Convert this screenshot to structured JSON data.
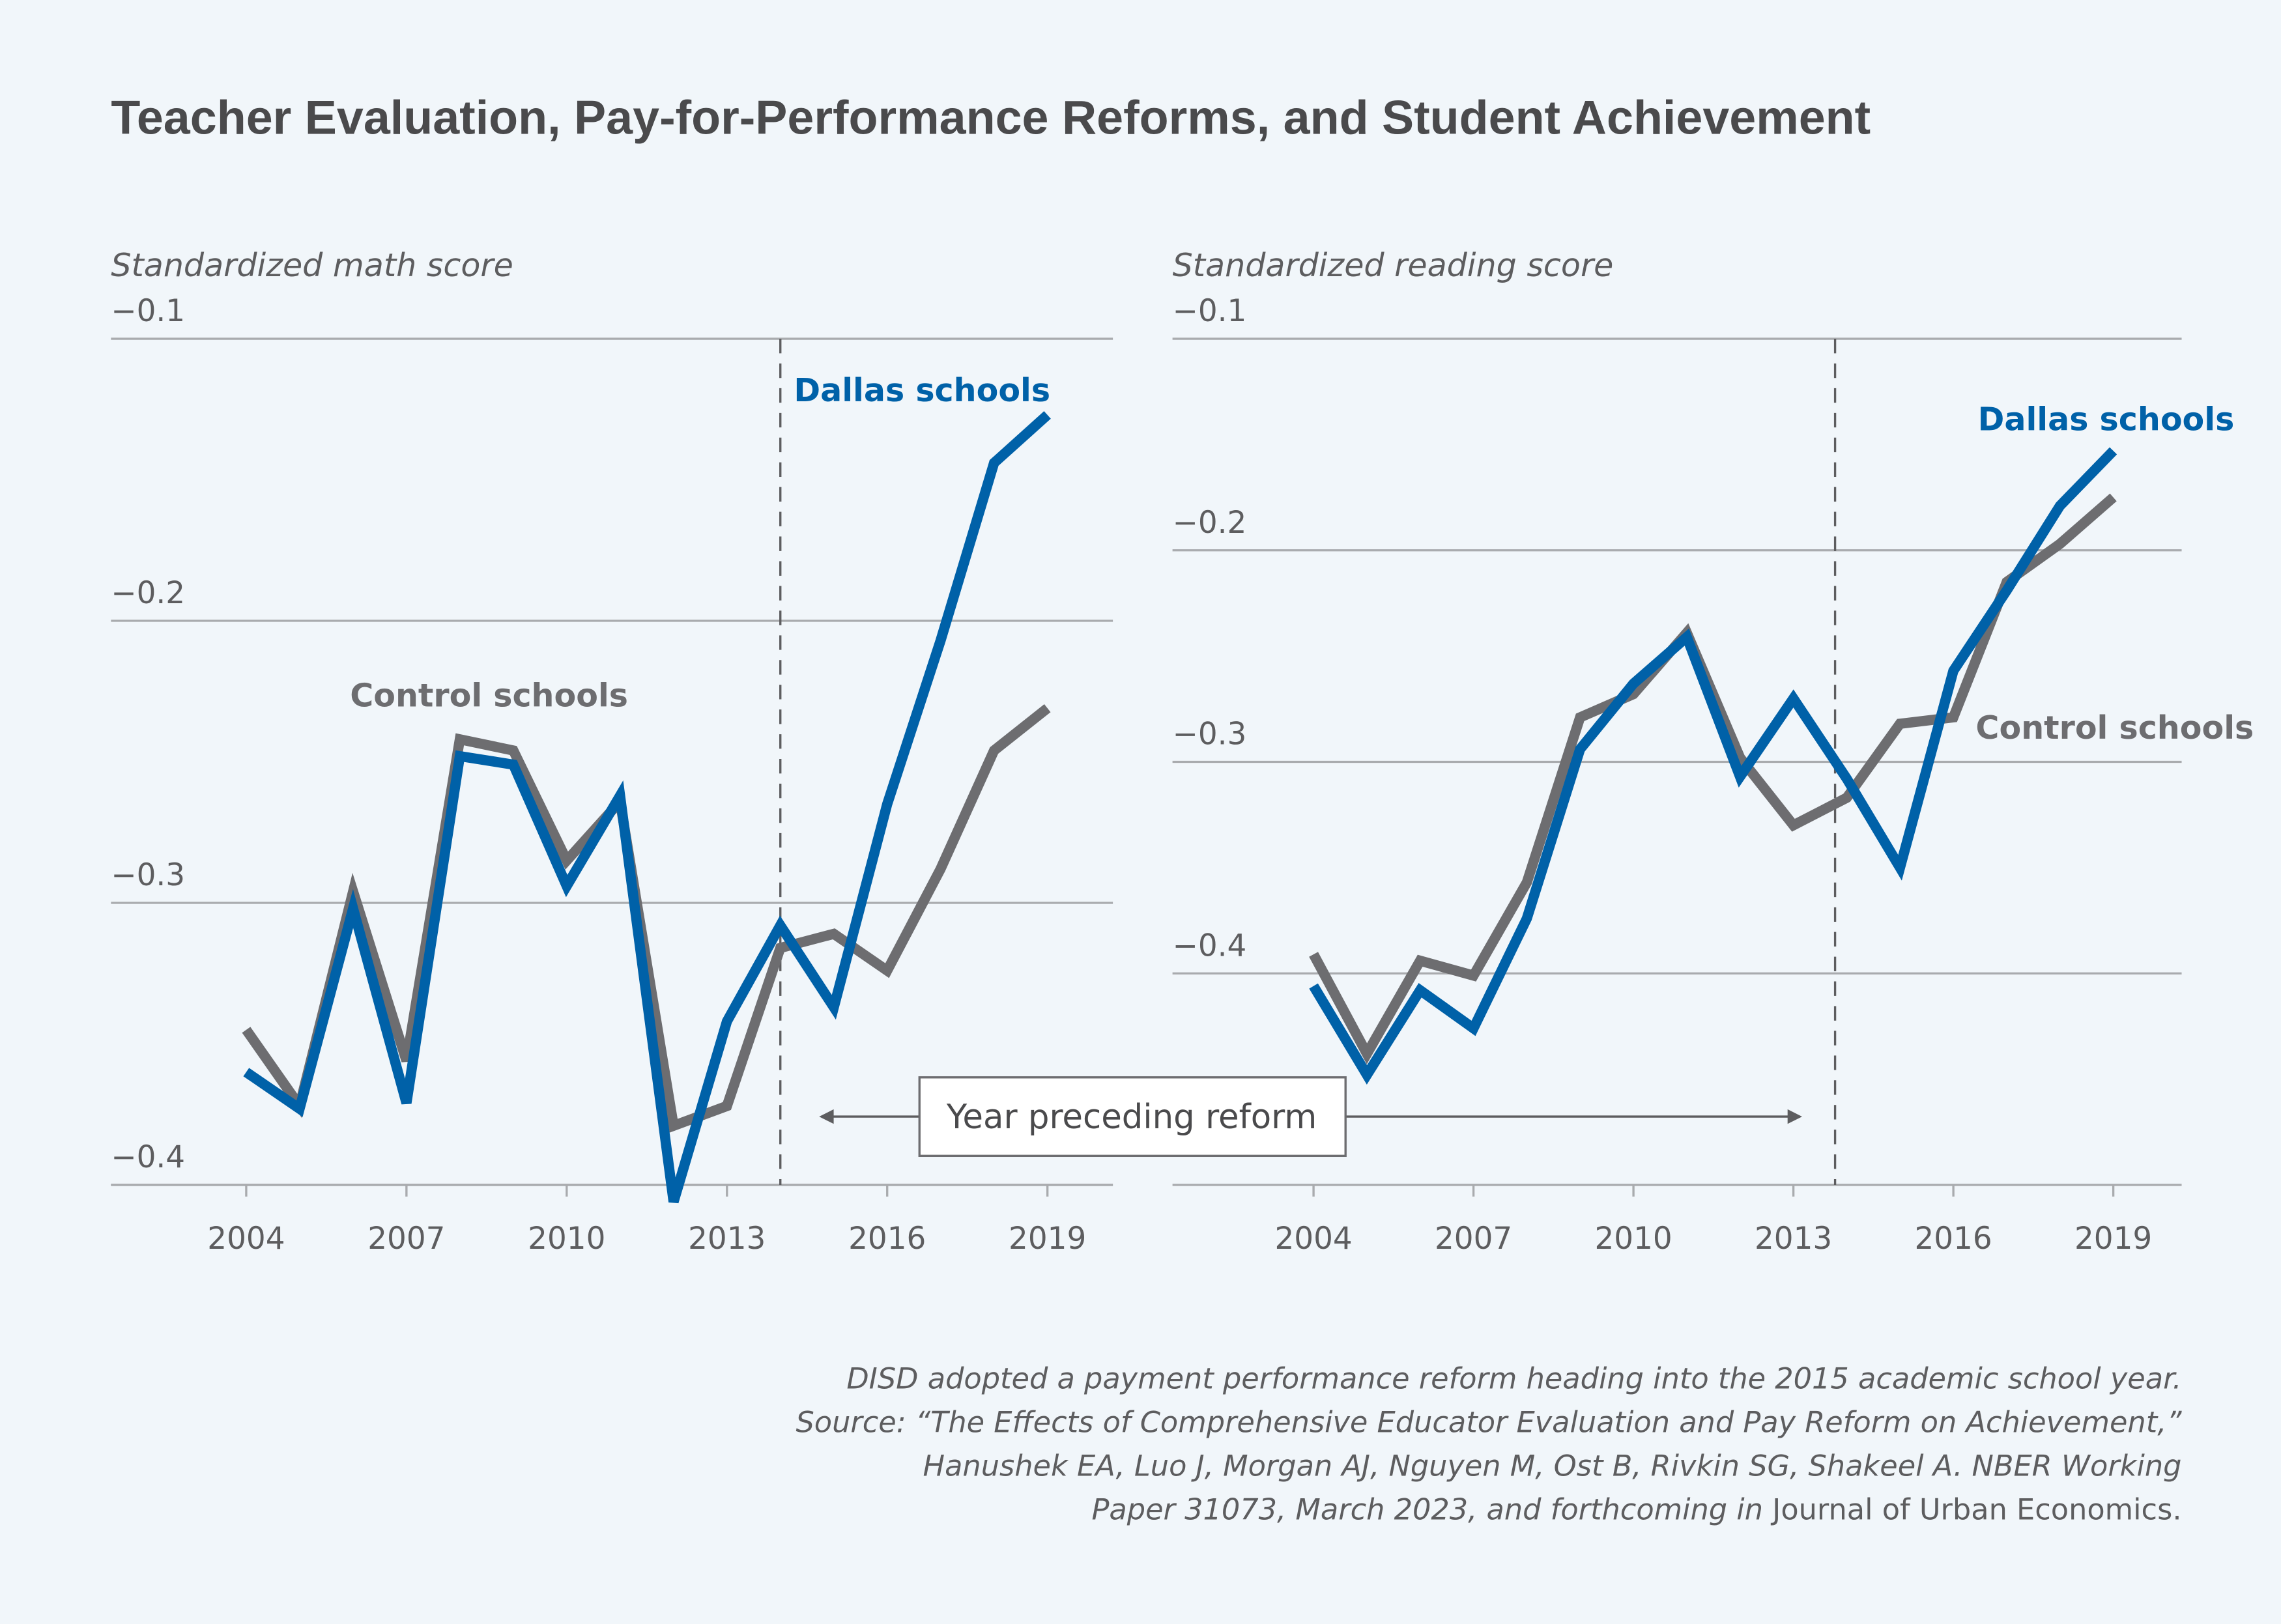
{
  "title": "Teacher Evaluation, Pay-for-Performance Reforms, and Student Achievement",
  "colors": {
    "dallas": "#0061a8",
    "control": "#6d6d70",
    "grid": "#a9abae",
    "background": "#f1f6fa"
  },
  "annotation": {
    "label": "Year preceding reform"
  },
  "footnote": {
    "line1": "DISD adopted a payment performance reform heading into the 2015 academic school year.",
    "line2": "Source: “The Effects of Comprehensive Educator Evaluation and Pay Reform on Achievement,”",
    "line3": "Hanushek EA, Luo J, Morgan AJ, Nguyen M, Ost B, Rivkin SG, Shakeel A. NBER Working",
    "line4a": "Paper 31073, March 2023, and forthcoming in ",
    "line4b": "Journal of Urban Economics."
  },
  "chart_data": [
    {
      "type": "line",
      "ylabel": "Standardized math score",
      "ylim": [
        -0.4,
        -0.1
      ],
      "yticks": [
        -0.1,
        -0.2,
        -0.3,
        -0.4
      ],
      "ytick_labels": [
        "−0.1",
        "−0.2",
        "−0.3",
        "−0.4"
      ],
      "xlim": [
        2001.5,
        2020.5
      ],
      "xticks": [
        2004,
        2007,
        2010,
        2013,
        2016,
        2019
      ],
      "xtick_labels": [
        "2004",
        "2007",
        "2010",
        "2013",
        "2016",
        "2019"
      ],
      "grid": true,
      "reform_marker_year": 2014,
      "x": [
        2004,
        2005,
        2006,
        2007,
        2008,
        2009,
        2010,
        2011,
        2012,
        2013,
        2014,
        2015,
        2016,
        2017,
        2018,
        2019
      ],
      "series": [
        {
          "name": "Dallas schools",
          "color": "#0061a8",
          "values": [
            -0.36,
            -0.373,
            -0.302,
            -0.371,
            -0.248,
            -0.251,
            -0.294,
            -0.262,
            -0.406,
            -0.342,
            -0.308,
            -0.337,
            -0.265,
            -0.207,
            -0.144,
            -0.127
          ]
        },
        {
          "name": "Control schools",
          "color": "#6d6d70",
          "values": [
            -0.345,
            -0.372,
            -0.296,
            -0.356,
            -0.242,
            -0.246,
            -0.285,
            -0.264,
            -0.379,
            -0.372,
            -0.316,
            -0.311,
            -0.324,
            -0.288,
            -0.246,
            -0.231
          ]
        }
      ]
    },
    {
      "type": "line",
      "ylabel": "Standardized reading score",
      "ylim": [
        -0.5,
        -0.1
      ],
      "yticks": [
        -0.1,
        -0.2,
        -0.3,
        -0.4
      ],
      "ytick_labels": [
        "−0.1",
        "−0.2",
        "−0.3",
        "−0.4"
      ],
      "xlim": [
        2001.5,
        2020.5
      ],
      "xticks": [
        2004,
        2007,
        2010,
        2013,
        2016,
        2019
      ],
      "xtick_labels": [
        "2004",
        "2007",
        "2010",
        "2013",
        "2016",
        "2019"
      ],
      "grid": true,
      "reform_marker_year": 2014,
      "x": [
        2004,
        2005,
        2006,
        2007,
        2008,
        2009,
        2010,
        2011,
        2012,
        2013,
        2014,
        2015,
        2016,
        2017,
        2018,
        2019
      ],
      "series": [
        {
          "name": "Dallas schools",
          "color": "#0061a8",
          "values": [
            -0.406,
            -0.448,
            -0.408,
            -0.426,
            -0.374,
            -0.294,
            -0.263,
            -0.241,
            -0.307,
            -0.27,
            -0.308,
            -0.35,
            -0.257,
            -0.219,
            -0.179,
            -0.153
          ]
        },
        {
          "name": "Control schools",
          "color": "#6d6d70",
          "values": [
            -0.391,
            -0.438,
            -0.394,
            -0.401,
            -0.357,
            -0.279,
            -0.268,
            -0.239,
            -0.298,
            -0.33,
            -0.317,
            -0.282,
            -0.279,
            -0.215,
            -0.197,
            -0.175
          ]
        }
      ]
    }
  ]
}
